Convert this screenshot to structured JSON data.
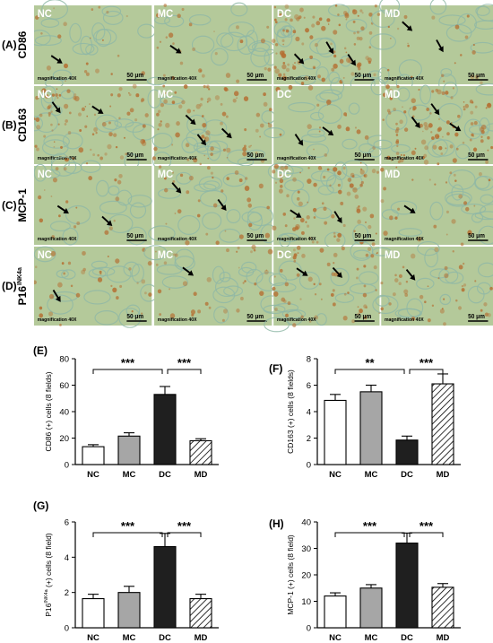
{
  "micrographs": {
    "rows": [
      {
        "letter": "(A)",
        "marker": "CD86",
        "marker_sup": ""
      },
      {
        "letter": "(B)",
        "marker": "CD163",
        "marker_sup": ""
      },
      {
        "letter": "(C)",
        "marker": "MCP-1",
        "marker_sup": ""
      },
      {
        "letter": "(D)",
        "marker": "P16",
        "marker_sup": "INK4a"
      }
    ],
    "groups": [
      "NC",
      "MC",
      "DC",
      "MD"
    ],
    "magnification": "magnification 40X",
    "scale_bar": "50 μm",
    "stain_colors": {
      "background": "#b4c99a",
      "dab": "#b56d30",
      "tissue": "#8fb8a6"
    },
    "layout": [
      [
        {
          "label": "NC",
          "arrows": 1,
          "dab": 0.15
        },
        {
          "label": "MC",
          "arrows": 1,
          "dab": 0.2
        },
        {
          "label": "DC",
          "arrows": 3,
          "dab": 0.75
        },
        {
          "label": "MD",
          "arrows": 2,
          "dab": 0.15
        }
      ],
      [
        {
          "label": "NC",
          "arrows": 2,
          "dab": 0.6
        },
        {
          "label": "MC",
          "arrows": 3,
          "dab": 0.55
        },
        {
          "label": "DC",
          "arrows": 2,
          "dab": 0.15
        },
        {
          "label": "MD",
          "arrows": 3,
          "dab": 0.75
        }
      ],
      [
        {
          "label": "NC",
          "arrows": 2,
          "dab": 0.15
        },
        {
          "label": "MC",
          "arrows": 2,
          "dab": 0.25
        },
        {
          "label": "DC",
          "arrows": 2,
          "dab": 0.6
        },
        {
          "label": "MD",
          "arrows": 1,
          "dab": 0.2
        }
      ],
      [
        {
          "label": "NC",
          "arrows": 1,
          "dab": 0.25
        },
        {
          "label": "MC",
          "arrows": 1,
          "dab": 0.25
        },
        {
          "label": "DC",
          "arrows": 2,
          "dab": 0.45
        },
        {
          "label": "MD",
          "arrows": 1,
          "dab": 0.3
        }
      ]
    ]
  },
  "chart_data": [
    {
      "panel": "(E)",
      "type": "bar",
      "categories": [
        "NC",
        "MC",
        "DC",
        "MD"
      ],
      "values": [
        13.5,
        21.5,
        53,
        18
      ],
      "errors": [
        1.5,
        2.5,
        6,
        1.5
      ],
      "ylabel": "CD86 (+) cells (8 fields)",
      "ylim": [
        0,
        80
      ],
      "ticks": [
        0,
        20,
        40,
        60,
        80
      ],
      "significance": [
        {
          "from": 0,
          "to": 2,
          "label": "***"
        },
        {
          "from": 2,
          "to": 3,
          "label": "***"
        }
      ]
    },
    {
      "panel": "(F)",
      "type": "bar",
      "categories": [
        "NC",
        "MC",
        "DC",
        "MD"
      ],
      "values": [
        4.85,
        5.5,
        1.85,
        6.1
      ],
      "errors": [
        0.45,
        0.5,
        0.3,
        0.75
      ],
      "ylabel": "CD163 (+) cells (8 fields)",
      "ylim": [
        0,
        8
      ],
      "ticks": [
        0,
        2,
        4,
        6,
        8
      ],
      "significance": [
        {
          "from": 0,
          "to": 2,
          "label": "**"
        },
        {
          "from": 2,
          "to": 3,
          "label": "***"
        }
      ]
    },
    {
      "panel": "(G)",
      "type": "bar",
      "categories": [
        "NC",
        "MC",
        "DC",
        "MD"
      ],
      "values": [
        1.65,
        2.0,
        4.6,
        1.65
      ],
      "errors": [
        0.25,
        0.35,
        0.75,
        0.25
      ],
      "ylabel": "P16 (+) cells (8 field)",
      "ylabel_sup": "INK4a",
      "ylabel_prefix": "P16",
      "ylabel_rest": " (+) cells (8 field)",
      "ylim": [
        0,
        6
      ],
      "ticks": [
        0,
        2,
        4,
        6
      ],
      "significance": [
        {
          "from": 0,
          "to": 2,
          "label": "***"
        },
        {
          "from": 2,
          "to": 3,
          "label": "***"
        }
      ]
    },
    {
      "panel": "(H)",
      "type": "bar",
      "categories": [
        "NC",
        "MC",
        "DC",
        "MD"
      ],
      "values": [
        12,
        15,
        32,
        15.3
      ],
      "errors": [
        1.2,
        1.3,
        3.8,
        1.4
      ],
      "ylabel": "MCP-1 (+) cells (8 field)",
      "ylim": [
        0,
        40
      ],
      "ticks": [
        0,
        10,
        20,
        30,
        40
      ],
      "significance": [
        {
          "from": 0,
          "to": 2,
          "label": "***"
        },
        {
          "from": 2,
          "to": 3,
          "label": "***"
        }
      ]
    }
  ],
  "bar_styles": {
    "NC": {
      "fill": "#ffffff"
    },
    "MC": {
      "fill": "#a6a6a6"
    },
    "DC": {
      "fill": "#1f1f1f"
    },
    "MD": {
      "fill": "hatch"
    }
  }
}
